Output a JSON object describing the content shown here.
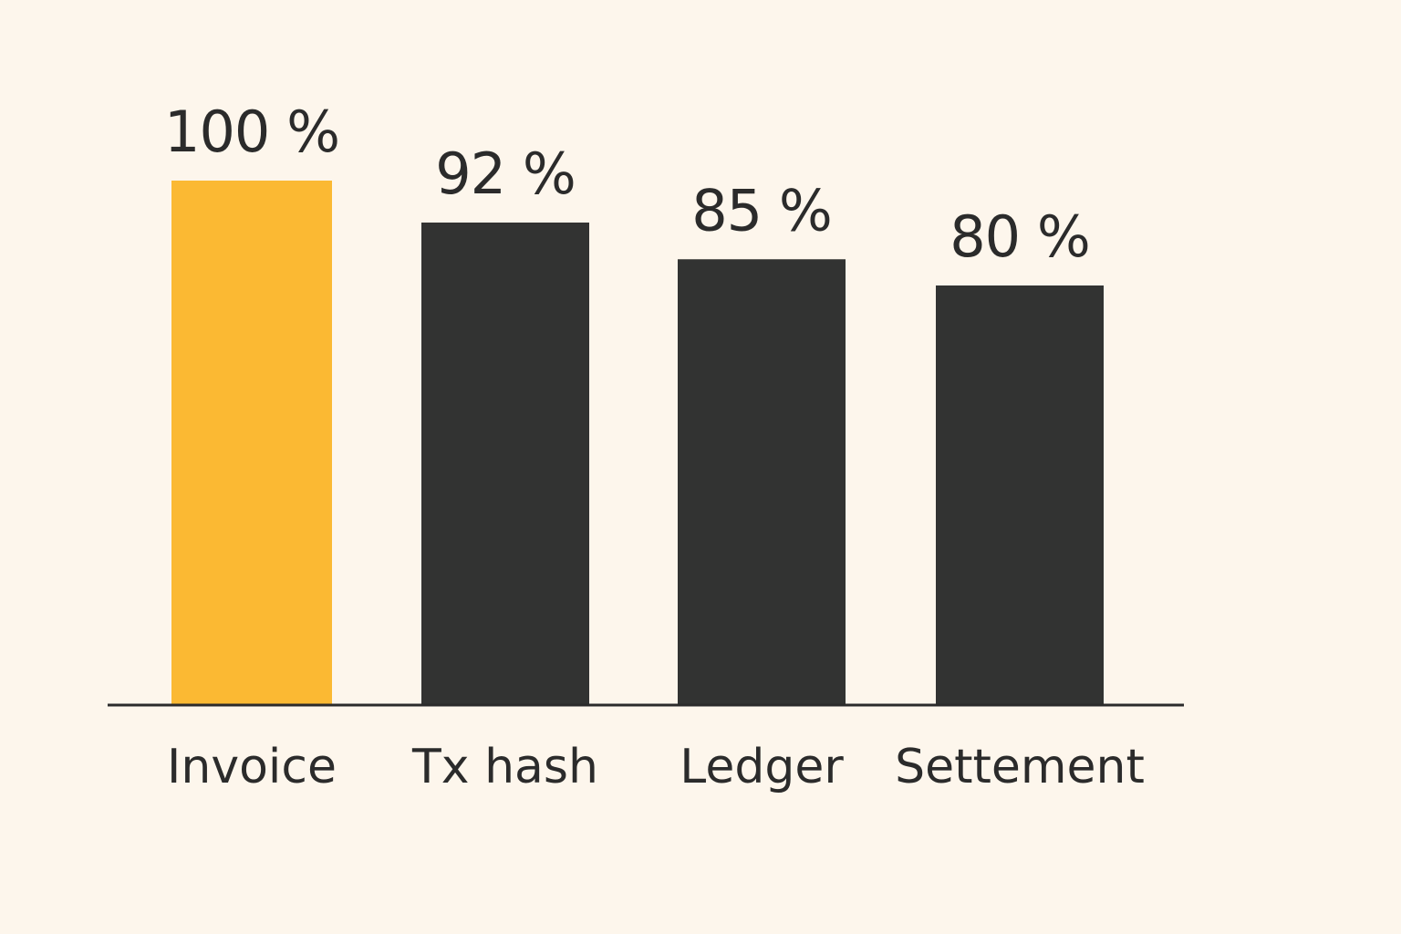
{
  "chart_data": {
    "type": "bar",
    "categories": [
      "Invoice",
      "Tx hash",
      "Ledger",
      "Settement"
    ],
    "values": [
      100,
      92,
      85,
      80
    ],
    "data_labels": [
      "100 %",
      "92 %",
      "85 %",
      "80 %"
    ],
    "unit": "%",
    "ylim": [
      0,
      100
    ],
    "grid": false,
    "legend": "none",
    "colors": [
      "#fbb933",
      "#323332",
      "#323332",
      "#323332"
    ],
    "axis_color": "#2b2b2b",
    "background": "#fdf6ec"
  }
}
